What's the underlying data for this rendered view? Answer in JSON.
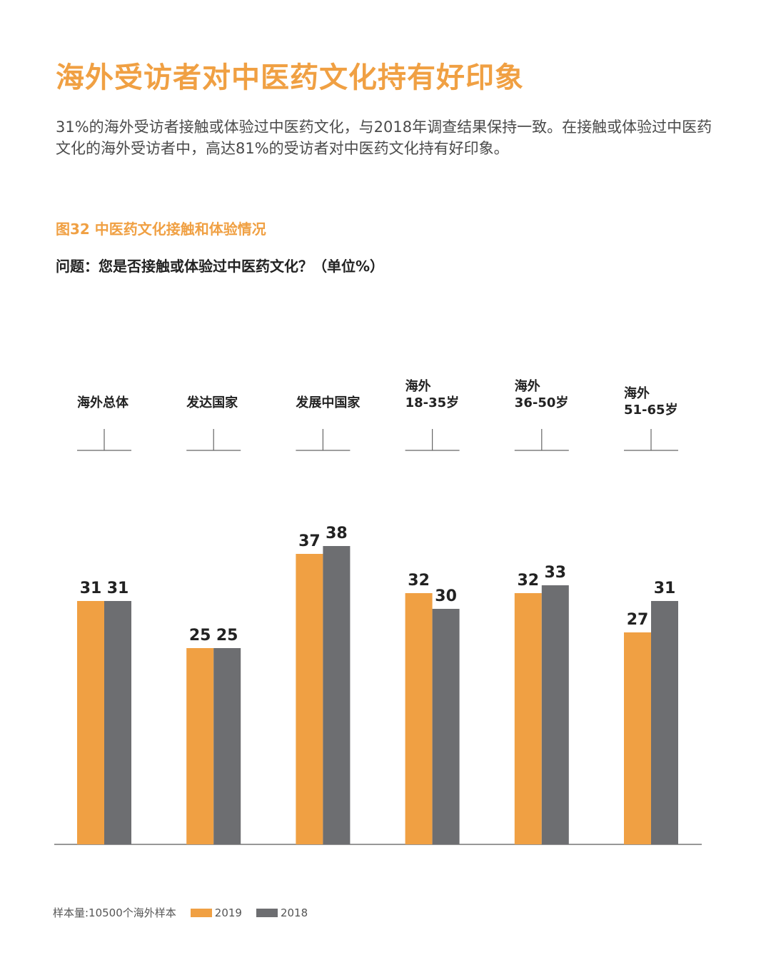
{
  "page": {
    "title": "海外受访者对中医药文化持有好印象",
    "intro": "31%的海外受访者接触或体验过中医药文化，与2018年调查结果保持一致。在接触或体验过中医药文化的海外受访者中，高达81%的受访者对中医药文化持有好印象。",
    "figure_title": "图32  中医药文化接触和体验情况",
    "question": "问题：您是否接触或体验过中医药文化？（单位%）",
    "sample_note": "样本量:10500个海外样本"
  },
  "colors": {
    "accent": "#f0a043",
    "series_2019": "#f0a043",
    "series_2018": "#6d6e71"
  },
  "chart_data": {
    "type": "bar",
    "title": "图32  中医药文化接触和体验情况",
    "ylabel": "",
    "xlabel": "",
    "ylim": [
      0,
      40
    ],
    "grid": false,
    "legend": "bottom-left",
    "categories": [
      [
        "海外总体"
      ],
      [
        "发达国家"
      ],
      [
        "发展中国家"
      ],
      [
        "海外",
        "18-35岁"
      ],
      [
        "海外",
        "36-50岁"
      ],
      [
        "海外",
        "51-65岁"
      ]
    ],
    "series": [
      {
        "name": "2019",
        "values": [
          31,
          25,
          37,
          32,
          32,
          27
        ]
      },
      {
        "name": "2018",
        "values": [
          31,
          25,
          38,
          30,
          33,
          31
        ]
      }
    ]
  }
}
